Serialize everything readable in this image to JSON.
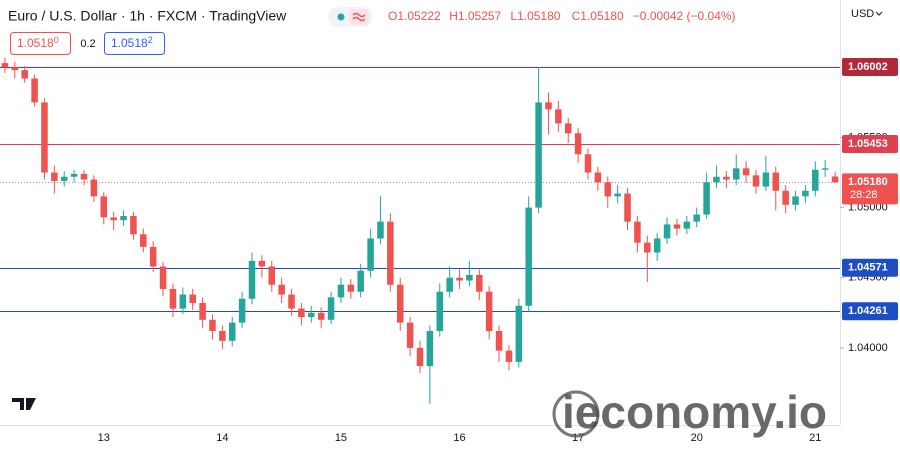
{
  "chart_data": {
    "type": "candlestick",
    "title": "Euro / U.S. Dollar · 1h · FXCM · TradingView",
    "ohlc_header": [
      "O1.05222",
      "H1.05257",
      "L1.05180",
      "C1.05180",
      "−0.00042 (−0.04%)"
    ],
    "sell_price": "1.05180",
    "spread": "0.2",
    "buy_price": "1.05182",
    "currency": "USD",
    "watermark": "ieconomy.io",
    "up_color": "#26a69a",
    "down_color": "#ef5350",
    "grid": false,
    "categories": [
      null,
      null,
      null,
      null,
      null,
      null,
      null,
      null,
      null,
      null,
      "13",
      null,
      null,
      null,
      null,
      null,
      null,
      null,
      null,
      null,
      null,
      null,
      "14",
      null,
      null,
      null,
      null,
      null,
      null,
      null,
      null,
      null,
      null,
      null,
      "15",
      null,
      null,
      null,
      null,
      null,
      null,
      null,
      null,
      null,
      null,
      null,
      "16",
      null,
      null,
      null,
      null,
      null,
      null,
      null,
      null,
      null,
      null,
      null,
      "17",
      null,
      null,
      null,
      null,
      null,
      null,
      null,
      null,
      null,
      null,
      null,
      "20",
      null,
      null,
      null,
      null,
      null,
      null,
      null,
      null,
      null,
      null,
      null,
      "21",
      null,
      null
    ],
    "open": [
      1.0603,
      1.06,
      1.0598,
      1.0592,
      1.0575,
      1.0525,
      1.0519,
      1.0522,
      1.0524,
      1.052,
      1.0508,
      1.0493,
      1.0491,
      1.0494,
      1.0481,
      1.0472,
      1.0458,
      1.0442,
      1.0428,
      1.0438,
      1.0432,
      1.042,
      1.0412,
      1.0405,
      1.0418,
      1.0435,
      1.0462,
      1.0458,
      1.0445,
      1.0438,
      1.0428,
      1.0422,
      1.0425,
      1.042,
      1.0436,
      1.0445,
      1.044,
      1.0455,
      1.0478,
      1.049,
      1.0445,
      1.0418,
      1.04,
      1.0387,
      1.0412,
      1.044,
      1.045,
      1.0448,
      1.0452,
      1.044,
      1.0412,
      1.0398,
      1.039,
      1.043,
      1.05,
      1.0575,
      1.057,
      1.056,
      1.0553,
      1.0538,
      1.0525,
      1.0518,
      1.0508,
      1.051,
      1.049,
      1.0475,
      1.0468,
      1.0478,
      1.0488,
      1.0485,
      1.049,
      1.0495,
      1.0518,
      1.0522,
      1.052,
      1.0528,
      1.0523,
      1.0515,
      1.0525,
      1.0512,
      1.0502,
      1.0508,
      1.0512,
      1.0527,
      1.05222
    ],
    "high": [
      1.0607,
      1.0604,
      1.0601,
      1.0595,
      1.0578,
      1.053,
      1.0526,
      1.0527,
      1.0527,
      1.0523,
      1.0511,
      1.0497,
      1.0498,
      1.0497,
      1.0485,
      1.0476,
      1.0461,
      1.0446,
      1.0443,
      1.0442,
      1.0436,
      1.0424,
      1.0416,
      1.0422,
      1.044,
      1.0468,
      1.0466,
      1.0462,
      1.045,
      1.0442,
      1.0432,
      1.043,
      1.0429,
      1.044,
      1.045,
      1.0449,
      1.046,
      1.0485,
      1.0508,
      1.0496,
      1.045,
      1.0422,
      1.0405,
      1.0416,
      1.0446,
      1.0458,
      1.0456,
      1.0462,
      1.0456,
      1.0444,
      1.0416,
      1.0402,
      1.0435,
      1.0508,
      1.06,
      1.0582,
      1.0576,
      1.0564,
      1.0557,
      1.0542,
      1.0529,
      1.0522,
      1.0516,
      1.0514,
      1.0494,
      1.048,
      1.0482,
      1.0493,
      1.0492,
      1.0494,
      1.05,
      1.0525,
      1.053,
      1.0526,
      1.0538,
      1.0533,
      1.0527,
      1.0537,
      1.0529,
      1.0516,
      1.0512,
      1.0516,
      1.0533,
      1.0534,
      1.05257
    ],
    "low": [
      1.0596,
      1.0592,
      1.0589,
      1.0572,
      1.052,
      1.051,
      1.0515,
      1.0518,
      1.0516,
      1.0504,
      1.0488,
      1.0484,
      1.0487,
      1.0477,
      1.0468,
      1.0454,
      1.0437,
      1.0422,
      1.0424,
      1.0427,
      1.0414,
      1.0406,
      1.0399,
      1.0401,
      1.0414,
      1.0431,
      1.045,
      1.044,
      1.0432,
      1.0423,
      1.0416,
      1.0418,
      1.0414,
      1.0417,
      1.0432,
      1.0435,
      1.0436,
      1.045,
      1.0474,
      1.044,
      1.0412,
      1.0394,
      1.0382,
      1.036,
      1.0408,
      1.0436,
      1.0442,
      1.0444,
      1.0434,
      1.0406,
      1.039,
      1.0384,
      1.0386,
      1.0426,
      1.0496,
      1.0552,
      1.0554,
      1.0546,
      1.0532,
      1.052,
      1.0512,
      1.05,
      1.0503,
      1.0484,
      1.0468,
      1.0447,
      1.0462,
      1.0474,
      1.048,
      1.0481,
      1.0486,
      1.0492,
      1.0514,
      1.0514,
      1.0516,
      1.0518,
      1.051,
      1.0512,
      1.0498,
      1.0496,
      1.0498,
      1.0503,
      1.0508,
      1.0522,
      1.0518
    ],
    "close": [
      1.06,
      1.0598,
      1.0592,
      1.0575,
      1.0525,
      1.0519,
      1.0522,
      1.0524,
      1.052,
      1.0508,
      1.0493,
      1.0491,
      1.0494,
      1.0481,
      1.0472,
      1.0458,
      1.0442,
      1.0428,
      1.0438,
      1.0432,
      1.042,
      1.0412,
      1.0405,
      1.0418,
      1.0435,
      1.0462,
      1.0458,
      1.0445,
      1.0438,
      1.0428,
      1.0422,
      1.0425,
      1.042,
      1.0436,
      1.0445,
      1.044,
      1.0455,
      1.0478,
      1.049,
      1.0445,
      1.0418,
      1.04,
      1.0387,
      1.0412,
      1.044,
      1.045,
      1.0448,
      1.0452,
      1.044,
      1.0412,
      1.0398,
      1.039,
      1.043,
      1.05,
      1.0575,
      1.057,
      1.056,
      1.0553,
      1.0538,
      1.0525,
      1.0518,
      1.0508,
      1.051,
      1.049,
      1.0475,
      1.0468,
      1.0478,
      1.0488,
      1.0485,
      1.049,
      1.0495,
      1.0518,
      1.0522,
      1.052,
      1.0528,
      1.0523,
      1.0515,
      1.0525,
      1.0512,
      1.0502,
      1.0508,
      1.0512,
      1.0527,
      1.0528,
      1.0518
    ],
    "ylim": [
      1.0345,
      1.0648
    ],
    "yticks": [
      {
        "value": 1.04,
        "label": "1.04000"
      },
      {
        "value": 1.045,
        "label": "1.04500"
      },
      {
        "value": 1.05,
        "label": "1.05000"
      },
      {
        "value": 1.055,
        "label": "1.05500"
      }
    ],
    "price_lines": [
      {
        "value": 1.06002,
        "color": "#b2283b"
      },
      {
        "value": 1.05453,
        "color": "#e0404f"
      },
      {
        "value": 1.04571,
        "color": "#1e4fc2"
      },
      {
        "value": 1.04261,
        "color": "#1e4fc2"
      }
    ],
    "current_price": {
      "value": 1.0518,
      "label": "1.05180",
      "countdown": "28:28",
      "color": "#ef5350"
    }
  }
}
